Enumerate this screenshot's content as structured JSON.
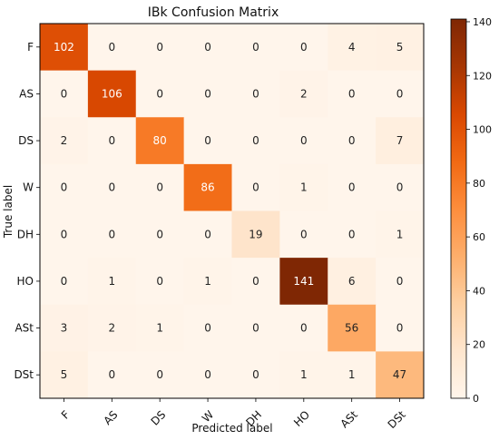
{
  "chart_data": {
    "type": "heatmap",
    "title": "IBk Confusion Matrix",
    "xlabel": "Predicted label",
    "ylabel": "True label",
    "x_categories": [
      "F",
      "AS",
      "DS",
      "W",
      "DH",
      "HO",
      "ASt",
      "DSt"
    ],
    "y_categories": [
      "F",
      "AS",
      "DS",
      "W",
      "DH",
      "HO",
      "ASt",
      "DSt"
    ],
    "values": [
      [
        102,
        0,
        0,
        0,
        0,
        0,
        4,
        5
      ],
      [
        0,
        106,
        0,
        0,
        0,
        2,
        0,
        0
      ],
      [
        2,
        0,
        80,
        0,
        0,
        0,
        0,
        7
      ],
      [
        0,
        0,
        0,
        86,
        0,
        1,
        0,
        0
      ],
      [
        0,
        0,
        0,
        0,
        19,
        0,
        0,
        1
      ],
      [
        0,
        1,
        0,
        1,
        0,
        141,
        6,
        0
      ],
      [
        3,
        2,
        1,
        0,
        0,
        0,
        56,
        0
      ],
      [
        5,
        0,
        0,
        0,
        0,
        1,
        1,
        47
      ]
    ],
    "colorbar": {
      "min": 0,
      "max": 141,
      "ticks": [
        0,
        20,
        40,
        60,
        80,
        100,
        120,
        140
      ],
      "colormap": "Oranges",
      "colors": [
        "#fff5eb",
        "#fee6ce",
        "#fdd0a2",
        "#fdae6b",
        "#fd8d3c",
        "#f16913",
        "#d94801",
        "#a63603",
        "#7f2704"
      ]
    }
  }
}
